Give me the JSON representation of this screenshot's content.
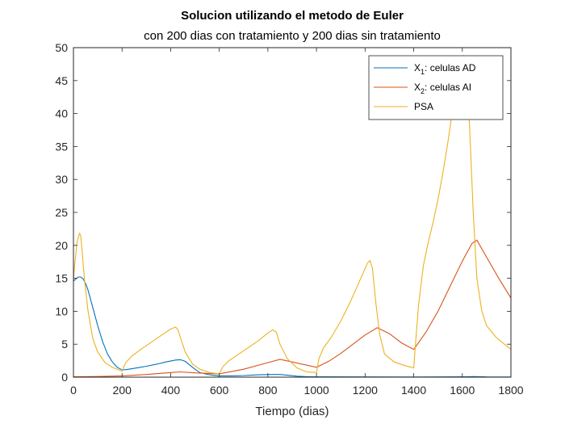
{
  "chart_data": {
    "type": "line",
    "title": "Solucion utilizando el metodo de Euler",
    "subtitle": "con 200 dias con tratamiento y 200 dias sin tratamiento",
    "xlabel": "Tiempo (dias)",
    "ylabel": "",
    "xlim": [
      0,
      1800
    ],
    "ylim": [
      0,
      50
    ],
    "xticks": [
      0,
      200,
      400,
      600,
      800,
      1000,
      1200,
      1400,
      1600,
      1800
    ],
    "yticks": [
      0,
      5,
      10,
      15,
      20,
      25,
      30,
      35,
      40,
      45,
      50
    ],
    "grid": false,
    "legend_position": "top-right",
    "series": [
      {
        "name": "X1: celulas AD",
        "name_main": "X",
        "name_sub": "1",
        "name_rest": ": celulas AD",
        "color": "#0072BD",
        "points": [
          [
            0,
            14.6
          ],
          [
            10,
            14.9
          ],
          [
            20,
            15.2
          ],
          [
            30,
            15.2
          ],
          [
            40,
            14.9
          ],
          [
            50,
            14.2
          ],
          [
            60,
            13.2
          ],
          [
            80,
            10.5
          ],
          [
            100,
            7.8
          ],
          [
            120,
            5.4
          ],
          [
            140,
            3.5
          ],
          [
            160,
            2.3
          ],
          [
            180,
            1.5
          ],
          [
            200,
            1.1
          ],
          [
            220,
            1.15
          ],
          [
            260,
            1.4
          ],
          [
            300,
            1.65
          ],
          [
            340,
            1.95
          ],
          [
            380,
            2.3
          ],
          [
            420,
            2.6
          ],
          [
            440,
            2.65
          ],
          [
            460,
            2.4
          ],
          [
            480,
            1.8
          ],
          [
            500,
            1.2
          ],
          [
            520,
            0.7
          ],
          [
            560,
            0.35
          ],
          [
            600,
            0.2
          ],
          [
            650,
            0.2
          ],
          [
            700,
            0.25
          ],
          [
            760,
            0.35
          ],
          [
            820,
            0.4
          ],
          [
            850,
            0.4
          ],
          [
            880,
            0.3
          ],
          [
            920,
            0.15
          ],
          [
            960,
            0.07
          ],
          [
            1000,
            0.05
          ],
          [
            1200,
            0.04
          ],
          [
            1400,
            0.03
          ],
          [
            1600,
            0.05
          ],
          [
            1650,
            0.08
          ],
          [
            1700,
            0.04
          ],
          [
            1800,
            0.02
          ]
        ]
      },
      {
        "name": "X2: celulas AI",
        "name_main": "X",
        "name_sub": "2",
        "name_rest": ": celulas AI",
        "color": "#D95319",
        "points": [
          [
            0,
            0.05
          ],
          [
            100,
            0.1
          ],
          [
            200,
            0.2
          ],
          [
            300,
            0.4
          ],
          [
            400,
            0.7
          ],
          [
            440,
            0.8
          ],
          [
            500,
            0.65
          ],
          [
            600,
            0.5
          ],
          [
            700,
            1.2
          ],
          [
            800,
            2.2
          ],
          [
            850,
            2.7
          ],
          [
            900,
            2.3
          ],
          [
            1000,
            1.5
          ],
          [
            1050,
            2.4
          ],
          [
            1100,
            3.6
          ],
          [
            1150,
            5.0
          ],
          [
            1200,
            6.4
          ],
          [
            1250,
            7.5
          ],
          [
            1300,
            6.6
          ],
          [
            1350,
            5.2
          ],
          [
            1400,
            4.2
          ],
          [
            1450,
            6.8
          ],
          [
            1500,
            10.0
          ],
          [
            1550,
            13.8
          ],
          [
            1600,
            17.6
          ],
          [
            1640,
            20.3
          ],
          [
            1660,
            20.8
          ],
          [
            1700,
            18.2
          ],
          [
            1750,
            15.0
          ],
          [
            1800,
            12.0
          ]
        ]
      },
      {
        "name": "PSA",
        "name_main": "PSA",
        "name_sub": "",
        "name_rest": "",
        "color": "#EDB120",
        "points": [
          [
            0,
            14.8
          ],
          [
            5,
            17.0
          ],
          [
            15,
            20.5
          ],
          [
            25,
            21.8
          ],
          [
            30,
            21.5
          ],
          [
            35,
            19.5
          ],
          [
            45,
            15.0
          ],
          [
            60,
            10.0
          ],
          [
            80,
            5.8
          ],
          [
            100,
            3.8
          ],
          [
            130,
            2.2
          ],
          [
            160,
            1.5
          ],
          [
            200,
            0.9
          ],
          [
            215,
            2.2
          ],
          [
            240,
            3.2
          ],
          [
            280,
            4.3
          ],
          [
            320,
            5.3
          ],
          [
            360,
            6.3
          ],
          [
            400,
            7.3
          ],
          [
            420,
            7.6
          ],
          [
            430,
            7.2
          ],
          [
            440,
            6.0
          ],
          [
            460,
            3.8
          ],
          [
            490,
            2.0
          ],
          [
            520,
            1.2
          ],
          [
            560,
            0.7
          ],
          [
            600,
            0.5
          ],
          [
            615,
            1.6
          ],
          [
            640,
            2.5
          ],
          [
            680,
            3.5
          ],
          [
            720,
            4.5
          ],
          [
            760,
            5.5
          ],
          [
            800,
            6.7
          ],
          [
            820,
            7.2
          ],
          [
            835,
            6.8
          ],
          [
            850,
            5.0
          ],
          [
            880,
            2.8
          ],
          [
            920,
            1.4
          ],
          [
            960,
            0.8
          ],
          [
            1000,
            0.7
          ],
          [
            1010,
            2.8
          ],
          [
            1030,
            4.5
          ],
          [
            1060,
            6.0
          ],
          [
            1100,
            8.5
          ],
          [
            1140,
            11.5
          ],
          [
            1180,
            14.8
          ],
          [
            1210,
            17.3
          ],
          [
            1220,
            17.7
          ],
          [
            1230,
            16.5
          ],
          [
            1245,
            11.0
          ],
          [
            1260,
            6.5
          ],
          [
            1280,
            3.5
          ],
          [
            1320,
            2.3
          ],
          [
            1360,
            1.8
          ],
          [
            1400,
            1.4
          ],
          [
            1405,
            4.0
          ],
          [
            1420,
            11.0
          ],
          [
            1440,
            17.0
          ],
          [
            1460,
            20.5
          ],
          [
            1480,
            23.5
          ],
          [
            1500,
            27.0
          ],
          [
            1520,
            31.0
          ],
          [
            1540,
            35.5
          ],
          [
            1560,
            40.5
          ],
          [
            1580,
            45.5
          ],
          [
            1595,
            48.5
          ],
          [
            1605,
            48.8
          ],
          [
            1615,
            46.0
          ],
          [
            1630,
            38.0
          ],
          [
            1645,
            25.0
          ],
          [
            1660,
            15.0
          ],
          [
            1680,
            10.0
          ],
          [
            1700,
            7.8
          ],
          [
            1740,
            6.0
          ],
          [
            1780,
            4.8
          ],
          [
            1800,
            4.2
          ]
        ]
      }
    ]
  }
}
